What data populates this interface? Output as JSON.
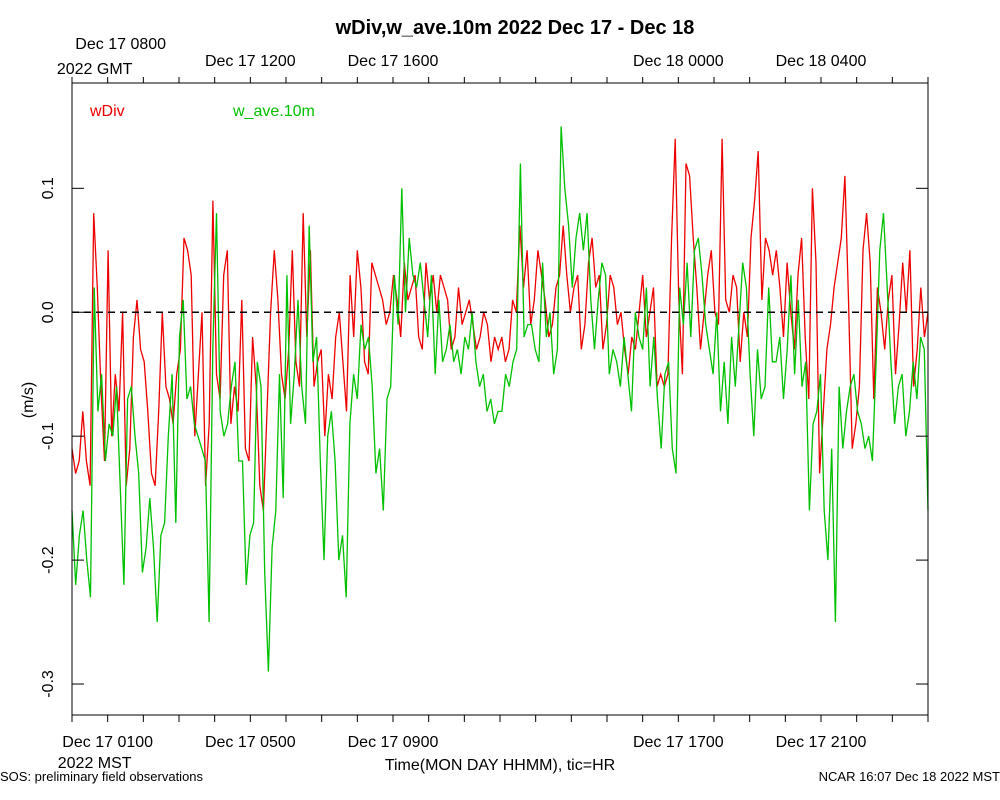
{
  "chart_data": {
    "type": "line",
    "title": "wDiv,w_ave.10m 2022 Dec 17 - Dec 18",
    "xlabel": "Time(MON DAY HHMM), tic=HR",
    "ylabel": "(m/s)",
    "ylim": [
      -0.325,
      0.185
    ],
    "grid": false,
    "legend_placement": "top-left",
    "zero_line": 0.0,
    "zero_line_style": "dashed",
    "y_ticks": [
      {
        "value": 0.1,
        "label": "0.1"
      },
      {
        "value": 0.0,
        "label": "0.0"
      },
      {
        "value": -0.1,
        "label": "-0.1"
      },
      {
        "value": -0.2,
        "label": "-0.2"
      },
      {
        "value": -0.3,
        "label": "-0.3"
      }
    ],
    "x_range_hours_mst": [
      0,
      24
    ],
    "top_labels": [
      {
        "hour": 1,
        "text": "Dec 17 0800",
        "sub": "2022 GMT"
      },
      {
        "hour": 5,
        "text": "Dec 17 1200",
        "sub": ""
      },
      {
        "hour": 9,
        "text": "Dec 17 1600",
        "sub": ""
      },
      {
        "hour": 17,
        "text": "Dec 18 0000",
        "sub": ""
      },
      {
        "hour": 21,
        "text": "Dec 18 0400",
        "sub": ""
      }
    ],
    "bottom_labels": [
      {
        "hour": 1,
        "text": "Dec 17 0100",
        "sub": "2022 MST"
      },
      {
        "hour": 5,
        "text": "Dec 17 0500",
        "sub": ""
      },
      {
        "hour": 9,
        "text": "Dec 17 0900",
        "sub": ""
      },
      {
        "hour": 17,
        "text": "Dec 17 1700",
        "sub": ""
      },
      {
        "hour": 21,
        "text": "Dec 17 2100",
        "sub": ""
      }
    ],
    "series": [
      {
        "name": "wDiv",
        "color": "#ee0000",
        "values": [
          -0.11,
          -0.13,
          -0.12,
          -0.08,
          -0.12,
          -0.14,
          0.08,
          0.02,
          -0.06,
          -0.12,
          0.05,
          -0.1,
          -0.05,
          -0.08,
          0.0,
          -0.14,
          -0.11,
          -0.02,
          0.01,
          -0.03,
          -0.04,
          -0.08,
          -0.13,
          -0.14,
          -0.08,
          0.0,
          -0.06,
          -0.07,
          -0.09,
          -0.05,
          -0.03,
          0.06,
          0.05,
          0.03,
          -0.1,
          -0.05,
          0.0,
          -0.14,
          -0.09,
          0.09,
          -0.05,
          -0.07,
          0.03,
          0.05,
          -0.09,
          -0.06,
          -0.08,
          0.01,
          -0.11,
          -0.12,
          -0.02,
          -0.06,
          -0.14,
          -0.16,
          -0.08,
          0.0,
          0.05,
          0.01,
          -0.05,
          -0.07,
          -0.03,
          0.05,
          -0.04,
          -0.06,
          0.08,
          -0.02,
          0.05,
          -0.06,
          -0.04,
          -0.03,
          -0.1,
          -0.05,
          -0.07,
          -0.02,
          0.0,
          -0.04,
          -0.08,
          0.03,
          -0.02,
          0.05,
          0.02,
          -0.04,
          -0.05,
          0.04,
          0.03,
          0.02,
          0.01,
          -0.01,
          0.0,
          0.03,
          0.01,
          -0.02,
          0.04,
          0.01,
          0.02,
          0.03,
          -0.02,
          -0.03,
          0.04,
          0.01,
          0.03,
          0.0,
          0.03,
          0.02,
          0.01,
          -0.03,
          -0.02,
          0.02,
          -0.01,
          0.0,
          0.01,
          -0.01,
          -0.03,
          -0.02,
          0.0,
          -0.01,
          -0.04,
          -0.02,
          -0.03,
          -0.02,
          -0.04,
          -0.03,
          0.01,
          0.0,
          0.07,
          0.02,
          0.05,
          -0.01,
          0.01,
          0.05,
          0.03,
          0.01,
          -0.02,
          -0.01,
          0.02,
          0.03,
          0.07,
          0.03,
          0.0,
          0.02,
          0.03,
          -0.03,
          -0.01,
          0.04,
          0.06,
          0.02,
          0.03,
          -0.03,
          -0.01,
          0.03,
          0.02,
          -0.01,
          0.0,
          -0.03,
          -0.05,
          -0.02,
          -0.03,
          0.0,
          0.03,
          -0.02,
          0.0,
          0.02,
          -0.06,
          -0.05,
          -0.06,
          -0.05,
          0.06,
          0.14,
          0.01,
          -0.05,
          0.12,
          0.11,
          0.06,
          0.02,
          -0.03,
          0.0,
          0.03,
          0.05,
          0.0,
          -0.01,
          0.14,
          0.01,
          0.0,
          0.03,
          0.02,
          -0.04,
          0.0,
          -0.02,
          0.06,
          0.09,
          0.13,
          0.01,
          0.06,
          0.05,
          0.03,
          0.05,
          0.02,
          -0.02,
          0.04,
          0.0,
          -0.03,
          0.03,
          0.06,
          -0.02,
          -0.07,
          0.1,
          0.04,
          -0.13,
          -0.08,
          -0.03,
          -0.01,
          0.02,
          0.04,
          0.06,
          0.11,
          0.01,
          -0.11,
          -0.09,
          -0.06,
          0.05,
          0.08,
          0.04,
          -0.07,
          0.02,
          0.0,
          -0.03,
          0.01,
          0.03,
          -0.05,
          -0.01,
          0.04,
          0.0,
          0.05,
          -0.06,
          -0.03,
          0.02,
          -0.02,
          0.0
        ]
      },
      {
        "name": "w_ave.10m",
        "color": "#00c000",
        "values": [
          -0.16,
          -0.22,
          -0.18,
          -0.16,
          -0.2,
          -0.23,
          0.02,
          -0.08,
          -0.05,
          -0.12,
          -0.09,
          -0.1,
          -0.06,
          -0.14,
          -0.22,
          -0.07,
          -0.06,
          -0.1,
          -0.13,
          -0.21,
          -0.19,
          -0.15,
          -0.19,
          -0.25,
          -0.18,
          -0.17,
          -0.1,
          -0.05,
          -0.17,
          -0.02,
          0.01,
          -0.07,
          -0.06,
          -0.09,
          -0.1,
          -0.11,
          -0.12,
          -0.25,
          -0.03,
          0.08,
          -0.08,
          -0.1,
          -0.09,
          -0.06,
          -0.04,
          -0.12,
          -0.12,
          -0.22,
          -0.18,
          -0.17,
          -0.04,
          -0.06,
          -0.21,
          -0.29,
          -0.19,
          -0.16,
          -0.05,
          -0.15,
          0.03,
          -0.09,
          -0.05,
          0.01,
          -0.06,
          -0.09,
          0.07,
          -0.04,
          -0.02,
          -0.12,
          -0.2,
          -0.1,
          -0.08,
          -0.12,
          -0.2,
          -0.18,
          -0.23,
          -0.09,
          -0.05,
          -0.07,
          -0.01,
          -0.03,
          -0.02,
          -0.06,
          -0.13,
          -0.11,
          -0.16,
          -0.07,
          -0.06,
          0.03,
          -0.01,
          0.1,
          0.0,
          0.06,
          0.03,
          0.02,
          0.04,
          0.01,
          -0.02,
          0.03,
          -0.05,
          0.01,
          -0.04,
          -0.03,
          -0.01,
          -0.04,
          -0.03,
          -0.05,
          -0.02,
          -0.03,
          0.0,
          -0.04,
          -0.06,
          -0.05,
          -0.08,
          -0.07,
          -0.09,
          -0.08,
          -0.08,
          -0.05,
          -0.06,
          -0.04,
          -0.03,
          0.12,
          -0.02,
          -0.01,
          -0.01,
          -0.03,
          -0.04,
          0.04,
          -0.02,
          0.0,
          -0.05,
          -0.03,
          0.15,
          0.1,
          0.07,
          0.02,
          0.06,
          0.08,
          0.05,
          0.08,
          0.01,
          -0.03,
          0.01,
          0.04,
          0.03,
          -0.05,
          -0.03,
          -0.04,
          -0.06,
          -0.02,
          -0.05,
          -0.08,
          0.0,
          -0.02,
          -0.03,
          0.02,
          -0.06,
          -0.02,
          -0.07,
          -0.11,
          -0.05,
          -0.04,
          -0.11,
          -0.13,
          0.02,
          -0.01,
          0.04,
          -0.02,
          0.05,
          0.06,
          0.03,
          -0.01,
          -0.03,
          -0.05,
          0.0,
          -0.08,
          -0.04,
          -0.09,
          -0.02,
          -0.06,
          -0.01,
          0.04,
          0.02,
          -0.05,
          -0.1,
          -0.03,
          -0.07,
          -0.06,
          0.02,
          -0.04,
          -0.04,
          -0.02,
          -0.07,
          -0.03,
          0.03,
          -0.05,
          0.01,
          -0.06,
          -0.04,
          -0.16,
          -0.09,
          -0.08,
          -0.05,
          -0.16,
          -0.2,
          -0.11,
          -0.25,
          -0.06,
          -0.11,
          -0.08,
          -0.06,
          -0.05,
          -0.08,
          -0.09,
          -0.11,
          -0.1,
          -0.12,
          -0.04,
          0.05,
          0.08,
          0.02,
          -0.04,
          -0.09,
          -0.06,
          -0.05,
          -0.1,
          -0.08,
          -0.04,
          -0.07,
          -0.02,
          -0.03,
          -0.16
        ]
      }
    ]
  },
  "footer": {
    "left": "SOS: preliminary field observations",
    "right": "NCAR 16:07 Dec 18 2022 MST"
  }
}
